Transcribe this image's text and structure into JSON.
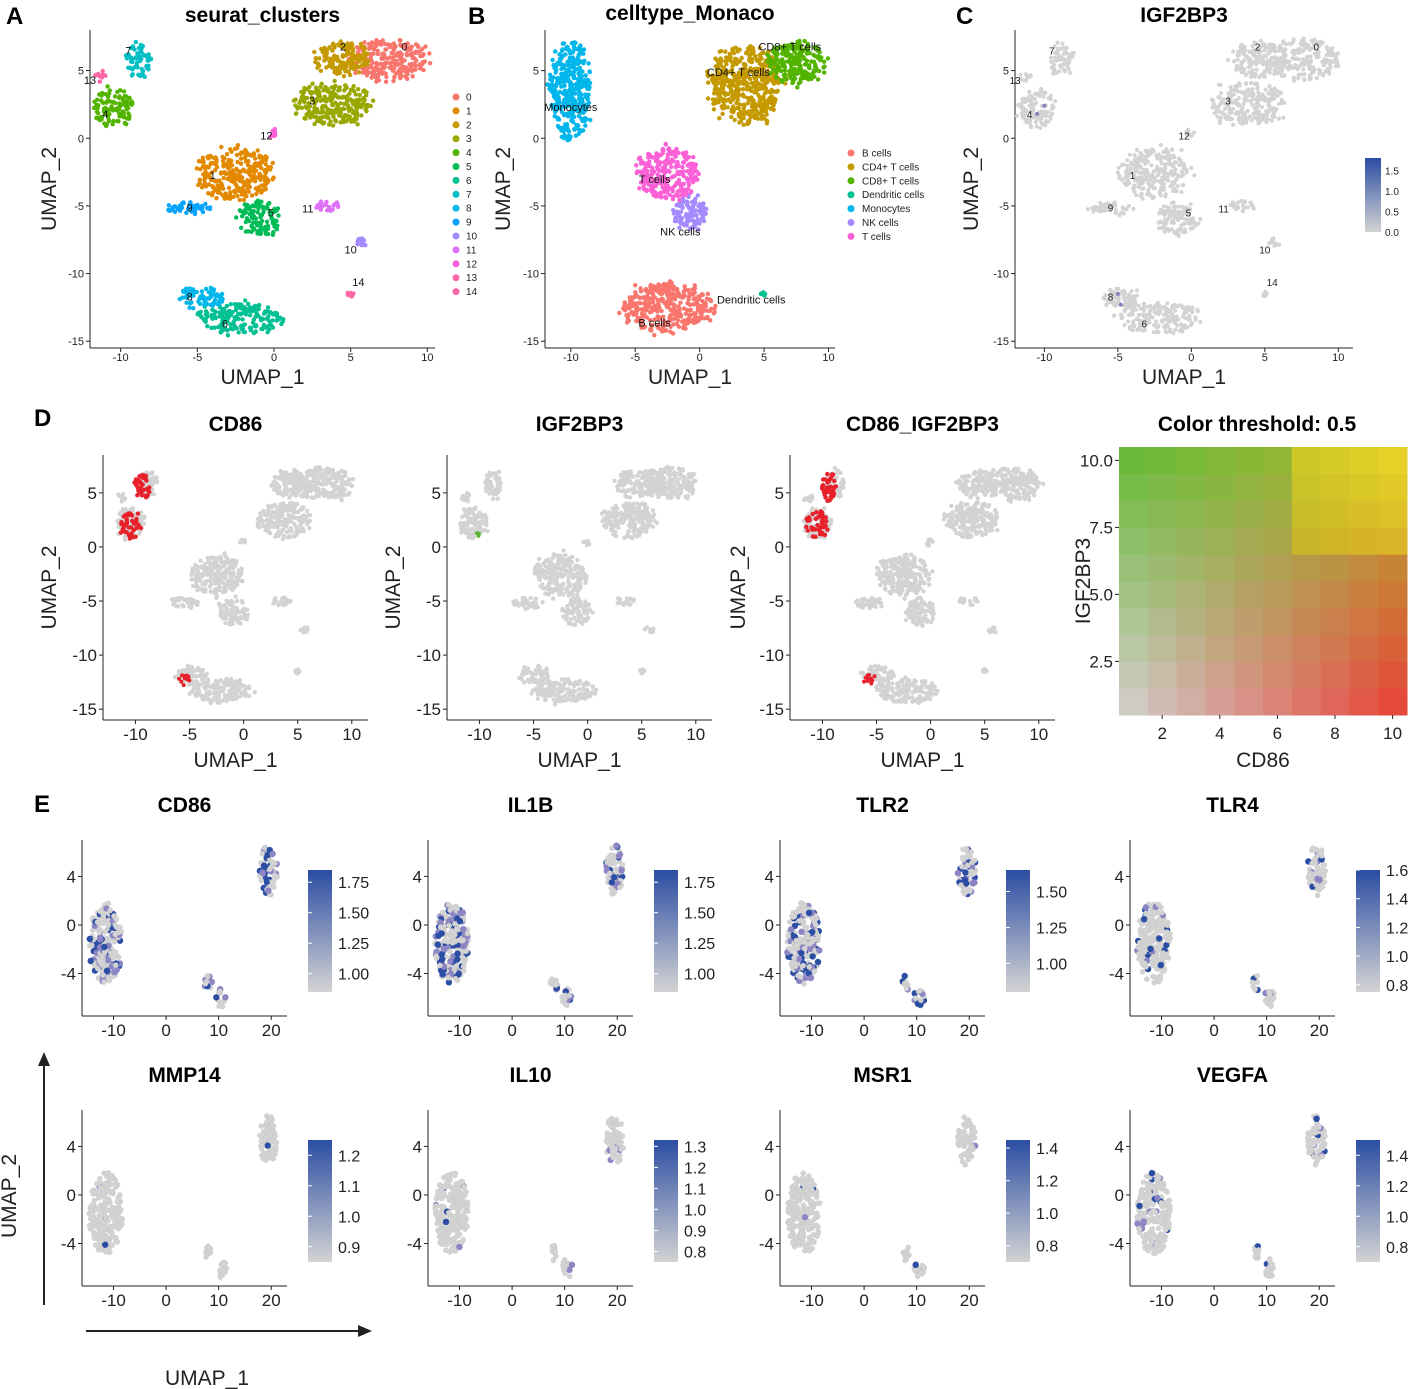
{
  "panel_labels": [
    "A",
    "B",
    "C",
    "D",
    "E"
  ],
  "axis_names": {
    "x": "UMAP_1",
    "y": "UMAP_2"
  },
  "colors": {
    "grey": "#d3d3d3",
    "expr_high": "#2b4da3",
    "coexp_red": "#e8202a",
    "coexp_green": "#5cb531"
  },
  "chart_data": [
    {
      "id": "A",
      "type": "scatter",
      "title": "seurat_clusters",
      "xlabel": "UMAP_1",
      "ylabel": "UMAP_2",
      "xlim": [
        -12,
        10.5
      ],
      "ylim": [
        -15.5,
        8
      ],
      "xticks": [
        -10,
        -5,
        0,
        5,
        10
      ],
      "yticks": [
        -15,
        -10,
        -5,
        0,
        5
      ],
      "legend_title": "",
      "legend_position": "right",
      "series": [
        {
          "name": "0",
          "color": "#F8766D",
          "x": 7.5,
          "y": 5.8,
          "rx": 2.6,
          "ry": 1.5,
          "label_xy": [
            8.5,
            6.5
          ]
        },
        {
          "name": "1",
          "color": "#E38900",
          "x": -2.5,
          "y": -2.6,
          "rx": 2.4,
          "ry": 1.9,
          "label_xy": [
            -4,
            -3
          ]
        },
        {
          "name": "2",
          "color": "#C49A00",
          "x": 4.5,
          "y": 5.8,
          "rx": 1.9,
          "ry": 1.3,
          "label_xy": [
            4.5,
            6.5
          ]
        },
        {
          "name": "3",
          "color": "#99A800",
          "x": 3.8,
          "y": 2.5,
          "rx": 2.5,
          "ry": 1.6,
          "label_xy": [
            2.5,
            2.5
          ]
        },
        {
          "name": "4",
          "color": "#53B400",
          "x": -10.5,
          "y": 2.2,
          "rx": 1.3,
          "ry": 1.4,
          "label_xy": [
            -11,
            1.5
          ]
        },
        {
          "name": "5",
          "color": "#00BC56",
          "x": -1,
          "y": -6,
          "rx": 1.4,
          "ry": 1.3,
          "label_xy": [
            -0.2,
            -5.8
          ]
        },
        {
          "name": "6",
          "color": "#00C094",
          "x": -2.2,
          "y": -13.3,
          "rx": 2.8,
          "ry": 1.1,
          "label_xy": [
            -3.2,
            -14
          ]
        },
        {
          "name": "7",
          "color": "#00BFC4",
          "x": -8.8,
          "y": 5.8,
          "rx": 0.8,
          "ry": 1.3,
          "label_xy": [
            -9.5,
            6.2
          ]
        },
        {
          "name": "8",
          "color": "#00B6EB",
          "x": -4.8,
          "y": -11.8,
          "rx": 1.5,
          "ry": 0.8,
          "label_xy": [
            -5.5,
            -12
          ]
        },
        {
          "name": "9",
          "color": "#06A4FF",
          "x": -5.5,
          "y": -5.2,
          "rx": 1.5,
          "ry": 0.5,
          "label_xy": [
            -5.5,
            -5.4
          ]
        },
        {
          "name": "10",
          "color": "#A58AFF",
          "x": 5.7,
          "y": -7.7,
          "rx": 0.4,
          "ry": 0.3,
          "label_xy": [
            5,
            -8.5
          ]
        },
        {
          "name": "11",
          "color": "#DF70F8",
          "x": 3.5,
          "y": -5,
          "rx": 0.9,
          "ry": 0.4,
          "label_xy": [
            2.2,
            -5.5
          ]
        },
        {
          "name": "12",
          "color": "#FB61D7",
          "x": -0.1,
          "y": 0.4,
          "rx": 0.3,
          "ry": 0.3,
          "label_xy": [
            -0.5,
            -0.1
          ]
        },
        {
          "name": "13",
          "color": "#FF66A8",
          "x": -11.3,
          "y": 4.6,
          "rx": 0.4,
          "ry": 0.4,
          "label_xy": [
            -12,
            4
          ]
        },
        {
          "name": "14",
          "color": "#FF66A8",
          "x": 5,
          "y": -11.5,
          "rx": 0.2,
          "ry": 0.2,
          "label_xy": [
            5.5,
            -10.9
          ]
        }
      ]
    },
    {
      "id": "B",
      "type": "scatter",
      "title": "celltype_Monaco",
      "xlabel": "UMAP_1",
      "ylabel": "UMAP_2",
      "xlim": [
        -12,
        10.5
      ],
      "ylim": [
        -15.5,
        8
      ],
      "xticks": [
        -10,
        -5,
        0,
        5,
        10
      ],
      "yticks": [
        -15,
        -10,
        -5,
        0,
        5
      ],
      "legend_position": "right",
      "series": [
        {
          "name": "B cells",
          "color": "#F8766D",
          "x": -2.5,
          "y": -12.5,
          "rx": 3.5,
          "ry": 1.8,
          "label_xy": [
            -3.5,
            -13.9
          ]
        },
        {
          "name": "CD4+ T cells",
          "color": "#C49A00",
          "x": 3.5,
          "y": 4,
          "rx": 2.8,
          "ry": 2.8,
          "label_xy": [
            3,
            4.6
          ]
        },
        {
          "name": "CD8+ T cells",
          "color": "#53B400",
          "x": 7.5,
          "y": 5.6,
          "rx": 2.2,
          "ry": 1.6,
          "label_xy": [
            7,
            6.5
          ]
        },
        {
          "name": "Dendritic cells",
          "color": "#00C094",
          "x": 4.9,
          "y": -11.5,
          "rx": 0.2,
          "ry": 0.2,
          "label_xy": [
            4,
            -12.2
          ]
        },
        {
          "name": "Monocytes",
          "color": "#00B6EB",
          "x": -10,
          "y": 3.5,
          "rx": 1.6,
          "ry": 3.6,
          "label_xy": [
            -10,
            2
          ]
        },
        {
          "name": "NK cells",
          "color": "#A58AFF",
          "x": -0.8,
          "y": -5.5,
          "rx": 1.3,
          "ry": 1.3,
          "label_xy": [
            -1.5,
            -7.2
          ]
        },
        {
          "name": "T cells",
          "color": "#FB61D7",
          "x": -2.5,
          "y": -2.6,
          "rx": 2.4,
          "ry": 1.9,
          "label_xy": [
            -3.5,
            -3.3
          ]
        }
      ]
    },
    {
      "id": "C",
      "type": "scatter",
      "title": "IGF2BP3",
      "xlabel": "UMAP_1",
      "ylabel": "UMAP_2",
      "xlim": [
        -12,
        11
      ],
      "ylim": [
        -15.5,
        8
      ],
      "xticks": [
        -10,
        -5,
        0,
        5,
        10
      ],
      "yticks": [
        -15,
        -10,
        -5,
        0,
        5
      ],
      "colorbar": {
        "ticks": [
          "1.5",
          "1.0",
          "0.5",
          "0.0"
        ],
        "range": [
          0,
          1.8
        ]
      },
      "cluster_labels": [
        "0",
        "1",
        "2",
        "3",
        "4",
        "5",
        "6",
        "7",
        "8",
        "9",
        "10",
        "11",
        "12",
        "13",
        "14"
      ]
    },
    {
      "id": "D1",
      "type": "scatter",
      "title": "CD86",
      "xlabel": "UMAP_1",
      "ylabel": "UMAP_2",
      "xlim": [
        -13,
        11.5
      ],
      "ylim": [
        -16,
        8.5
      ],
      "xticks": [
        -10,
        -5,
        0,
        5,
        10
      ],
      "yticks": [
        -15,
        -10,
        -5,
        0,
        5
      ]
    },
    {
      "id": "D2",
      "type": "scatter",
      "title": "IGF2BP3",
      "xlabel": "UMAP_1",
      "ylabel": "UMAP_2",
      "xlim": [
        -13,
        11.5
      ],
      "ylim": [
        -16,
        8.5
      ],
      "xticks": [
        -10,
        -5,
        0,
        5,
        10
      ],
      "yticks": [
        -15,
        -10,
        -5,
        0,
        5
      ]
    },
    {
      "id": "D3",
      "type": "scatter",
      "title": "CD86_IGF2BP3",
      "xlabel": "UMAP_1",
      "ylabel": "UMAP_2",
      "xlim": [
        -13,
        11.5
      ],
      "ylim": [
        -16,
        8.5
      ],
      "xticks": [
        -10,
        -5,
        0,
        5,
        10
      ],
      "yticks": [
        -15,
        -10,
        -5,
        0,
        5
      ]
    },
    {
      "id": "D4",
      "type": "heatmap",
      "title": "Color threshold: 0.5",
      "xlabel": "CD86",
      "ylabel": "IGF2BP3",
      "xlim": [
        0.5,
        10.5
      ],
      "ylim": [
        0.5,
        10.5
      ],
      "xticks": [
        "2",
        "4",
        "6",
        "8",
        "10"
      ],
      "yticks": [
        "2.5",
        "5.0",
        "7.5",
        "10.0"
      ],
      "grid_size": 10
    },
    {
      "id": "E1",
      "type": "scatter",
      "title": "CD86",
      "xlim": [
        -16,
        23
      ],
      "ylim": [
        -7.5,
        7
      ],
      "xticks": [
        -10,
        0,
        10,
        20
      ],
      "yticks": [
        4,
        0,
        -4
      ],
      "colorbar": {
        "ticks": [
          "1.75",
          "1.50",
          "1.25",
          "1.00"
        ],
        "range": [
          0.85,
          1.85
        ]
      },
      "expression": "high"
    },
    {
      "id": "E2",
      "type": "scatter",
      "title": "IL1B",
      "xlim": [
        -16,
        23
      ],
      "ylim": [
        -7.5,
        7
      ],
      "xticks": [
        -10,
        0,
        10,
        20
      ],
      "yticks": [
        4,
        0,
        -4
      ],
      "colorbar": {
        "ticks": [
          "1.75",
          "1.50",
          "1.25",
          "1.00"
        ],
        "range": [
          0.85,
          1.85
        ]
      },
      "expression": "high"
    },
    {
      "id": "E3",
      "type": "scatter",
      "title": "TLR2",
      "xlim": [
        -16,
        23
      ],
      "ylim": [
        -7.5,
        7
      ],
      "xticks": [
        -10,
        0,
        10,
        20
      ],
      "yticks": [
        4,
        0,
        -4
      ],
      "colorbar": {
        "ticks": [
          "1.50",
          "1.25",
          "1.00"
        ],
        "range": [
          0.8,
          1.65
        ]
      },
      "expression": "high"
    },
    {
      "id": "E4",
      "type": "scatter",
      "title": "TLR4",
      "xlim": [
        -16,
        23
      ],
      "ylim": [
        -7.5,
        7
      ],
      "xticks": [
        -10,
        0,
        10,
        20
      ],
      "yticks": [
        4,
        0,
        -4
      ],
      "colorbar": {
        "ticks": [
          "1.6",
          "1.4",
          "1.2",
          "1.0",
          "0.8"
        ],
        "range": [
          0.75,
          1.6
        ]
      },
      "expression": "medium"
    },
    {
      "id": "E5",
      "type": "scatter",
      "title": "MMP14",
      "xlim": [
        -16,
        23
      ],
      "ylim": [
        -7.5,
        7
      ],
      "xticks": [
        -10,
        0,
        10,
        20
      ],
      "yticks": [
        4,
        0,
        -4
      ],
      "colorbar": {
        "ticks": [
          "1.2",
          "1.1",
          "1.0",
          "0.9"
        ],
        "range": [
          0.85,
          1.25
        ]
      },
      "expression": "low"
    },
    {
      "id": "E6",
      "type": "scatter",
      "title": "IL10",
      "xlim": [
        -16,
        23
      ],
      "ylim": [
        -7.5,
        7
      ],
      "xticks": [
        -10,
        0,
        10,
        20
      ],
      "yticks": [
        4,
        0,
        -4
      ],
      "colorbar": {
        "ticks": [
          "1.3",
          "1.2",
          "1.1",
          "1.0",
          "0.9",
          "0.8"
        ],
        "range": [
          0.75,
          1.33
        ]
      },
      "expression": "low"
    },
    {
      "id": "E7",
      "type": "scatter",
      "title": "MSR1",
      "xlim": [
        -16,
        23
      ],
      "ylim": [
        -7.5,
        7
      ],
      "xticks": [
        -10,
        0,
        10,
        20
      ],
      "yticks": [
        4,
        0,
        -4
      ],
      "colorbar": {
        "ticks": [
          "1.4",
          "1.2",
          "1.0",
          "0.8"
        ],
        "range": [
          0.7,
          1.45
        ]
      },
      "expression": "low"
    },
    {
      "id": "E8",
      "type": "scatter",
      "title": "VEGFA",
      "xlim": [
        -16,
        23
      ],
      "ylim": [
        -7.5,
        7
      ],
      "xticks": [
        -10,
        0,
        10,
        20
      ],
      "yticks": [
        4,
        0,
        -4
      ],
      "colorbar": {
        "ticks": [
          "1.4",
          "1.2",
          "1.0",
          "0.8"
        ],
        "range": [
          0.7,
          1.5
        ]
      },
      "expression": "medium"
    }
  ]
}
